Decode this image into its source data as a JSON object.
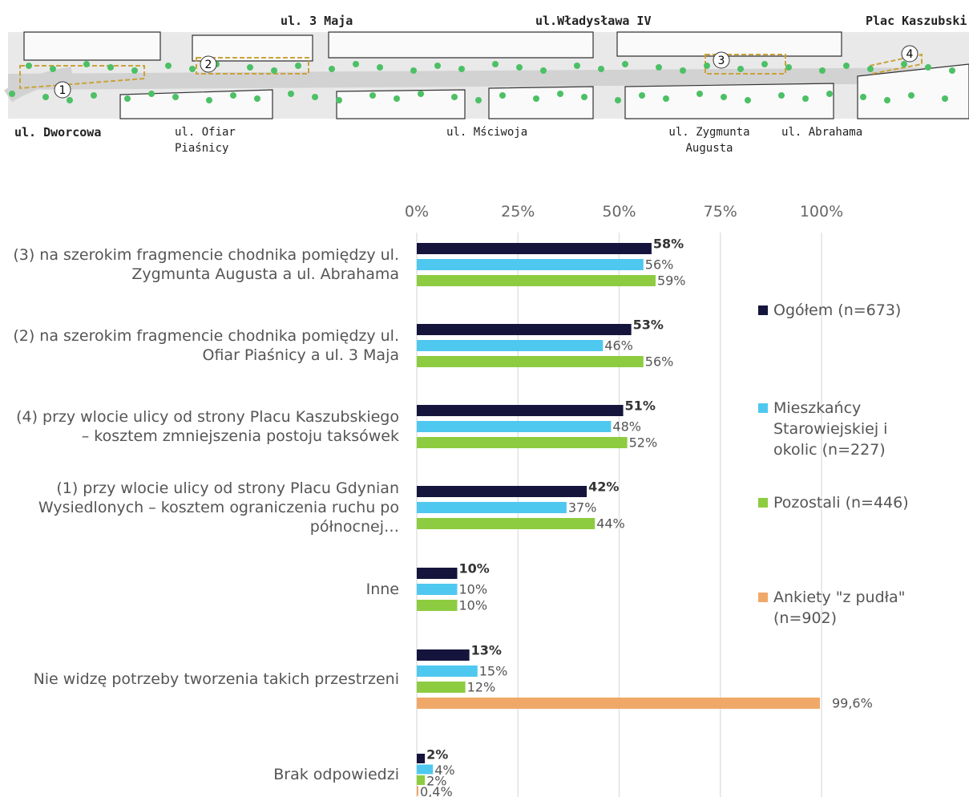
{
  "map": {
    "streets_top": [
      "ul. 3 Maja",
      "ul.Władysława IV",
      "Plac Kaszubski"
    ],
    "streets_bottom": [
      "ul. Dworcowa",
      "ul. Ofiar Piaśnicy",
      "ul. Mściwoja",
      "ul. Zygmunta Augusta",
      "ul. Abrahama"
    ],
    "markers": [
      "1",
      "2",
      "3",
      "4"
    ]
  },
  "chart_data": {
    "type": "hbar",
    "categories": [
      "(3) na szerokim fragmencie chodnika pomiędzy ul. Zygmunta Augusta a ul. Abrahama",
      "(2) na szerokim fragmencie chodnika pomiędzy ul. Ofiar Piaśnicy a ul. 3 Maja",
      "(4) przy wlocie ulicy od strony Placu Kaszubskiego – kosztem zmniejszenia postoju taksówek",
      "(1) przy wlocie ulicy od strony Placu Gdynian Wysiedlonych – kosztem ograniczenia ruchu po północnej…",
      "Inne",
      "Nie widzę potrzeby tworzenia takich przestrzeni",
      "Brak odpowiedzi"
    ],
    "xlim": [
      0,
      100
    ],
    "xticks": [
      {
        "value": 0,
        "label": "0%"
      },
      {
        "value": 25,
        "label": "25%"
      },
      {
        "value": 50,
        "label": "50%"
      },
      {
        "value": 75,
        "label": "75%"
      },
      {
        "value": 100,
        "label": "100%"
      }
    ],
    "grid": true,
    "legend": "right",
    "series": [
      {
        "name": "Ogółem (n=673)",
        "color": "#14143c",
        "values": [
          58,
          53,
          51,
          42,
          10,
          13,
          2
        ],
        "value_labels": [
          "58%",
          "53%",
          "51%",
          "42%",
          "10%",
          "13%",
          "2%"
        ]
      },
      {
        "name": "Mieszkańcy Starowiejskiej i okolic (n=227)",
        "color": "#4fc8f0",
        "values": [
          56,
          46,
          48,
          37,
          10,
          15,
          4
        ],
        "value_labels": [
          "56%",
          "46%",
          "48%",
          "37%",
          "10%",
          "15%",
          "4%"
        ]
      },
      {
        "name": "Pozostali (n=446)",
        "color": "#8dcc40",
        "values": [
          59,
          56,
          52,
          44,
          10,
          12,
          2
        ],
        "value_labels": [
          "59%",
          "56%",
          "52%",
          "44%",
          "10%",
          "12%",
          "2%"
        ]
      },
      {
        "name": "Ankiety \"z pudła\" (n=902)",
        "color": "#f0a868",
        "values": [
          null,
          null,
          null,
          null,
          null,
          99.6,
          0.4
        ],
        "value_labels": [
          null,
          null,
          null,
          null,
          null,
          "99,6%",
          "0,4%"
        ]
      }
    ]
  }
}
